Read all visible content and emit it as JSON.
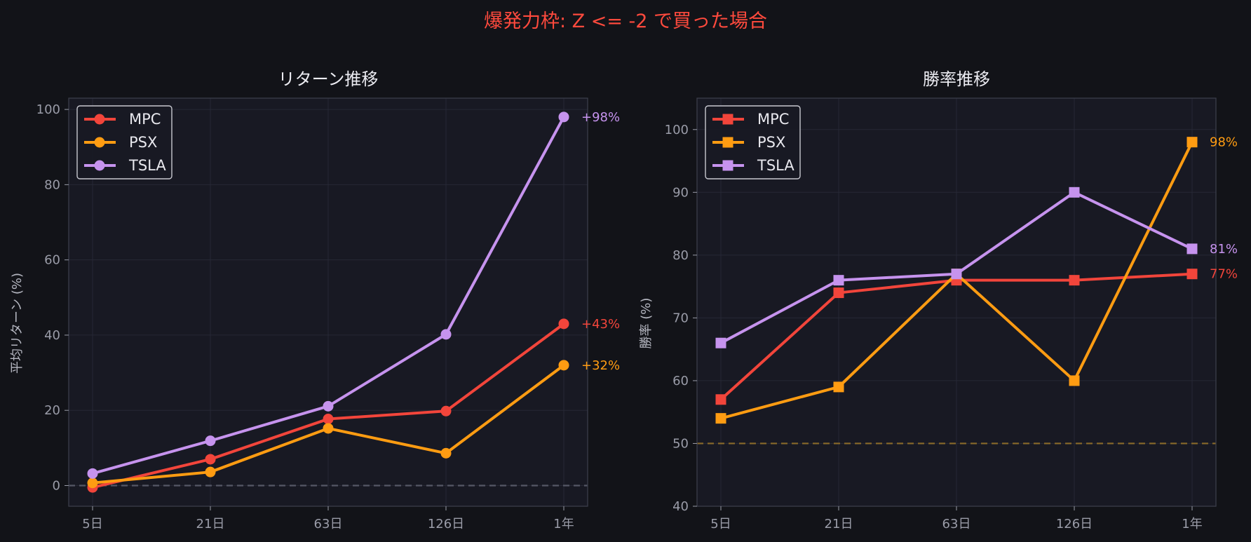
{
  "suptitle": "爆発力枠: Z <= -2 で買った場合",
  "colors": {
    "background": "#121318",
    "plot_background": "#181923",
    "MPC": "#f2453b",
    "PSX": "#ff9c12",
    "TSLA": "#c693ee",
    "reference_line_return": "#555866",
    "reference_line_winrate": "#8a6a2a"
  },
  "chart_data": [
    {
      "type": "line",
      "title": "リターン推移",
      "ylabel": "平均リターン (%)",
      "xlabel": "",
      "categories": [
        "5日",
        "21日",
        "63日",
        "126日",
        "1年"
      ],
      "ylim": [
        -5.5,
        103
      ],
      "yticks": [
        0,
        20,
        40,
        60,
        80,
        100
      ],
      "grid": true,
      "legend": "top-left",
      "marker": "circle",
      "reference_line": 0,
      "series": [
        {
          "name": "MPC",
          "values": [
            -0.5,
            7,
            17.7,
            19.8,
            43
          ],
          "end_label": "+43%"
        },
        {
          "name": "PSX",
          "values": [
            0.7,
            3.6,
            15.2,
            8.6,
            32
          ],
          "end_label": "+32%"
        },
        {
          "name": "TSLA",
          "values": [
            3.2,
            11.9,
            21.1,
            40.2,
            98
          ],
          "end_label": "+98%"
        }
      ]
    },
    {
      "type": "line",
      "title": "勝率推移",
      "ylabel": "勝率 (%)",
      "xlabel": "",
      "categories": [
        "5日",
        "21日",
        "63日",
        "126日",
        "1年"
      ],
      "ylim": [
        40,
        105
      ],
      "yticks": [
        40,
        50,
        60,
        70,
        80,
        90,
        100
      ],
      "grid": true,
      "legend": "top-left",
      "marker": "square",
      "reference_line": 50,
      "series": [
        {
          "name": "MPC",
          "values": [
            57,
            74,
            76,
            76,
            77
          ],
          "end_label": "77%"
        },
        {
          "name": "PSX",
          "values": [
            54,
            59,
            77,
            60,
            98
          ],
          "end_label": "98%"
        },
        {
          "name": "TSLA",
          "values": [
            66,
            76,
            77,
            90,
            81
          ],
          "end_label": "81%"
        }
      ]
    }
  ]
}
